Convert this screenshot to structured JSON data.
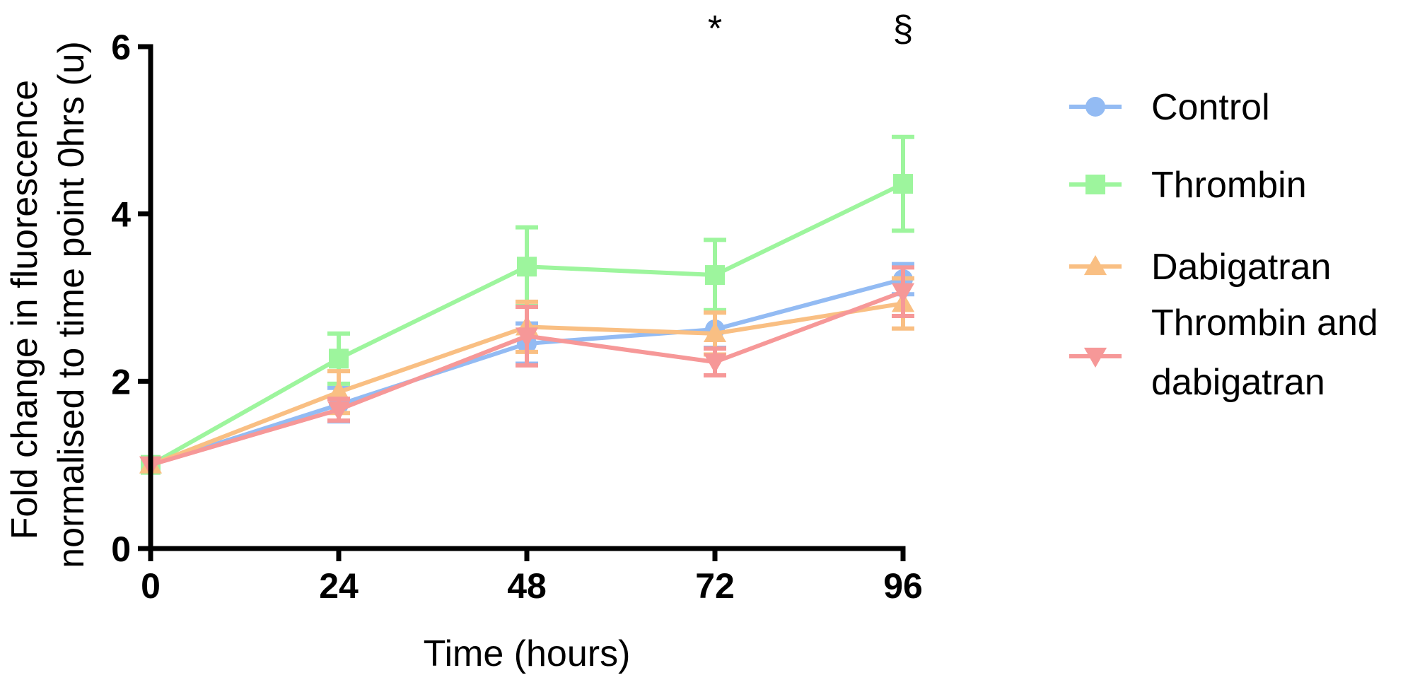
{
  "chart_data": {
    "type": "line",
    "xlabel": "Time (hours)",
    "ylabel_lines": [
      "Fold change in fluorescence",
      "normalised to time point 0hrs (u)"
    ],
    "x": [
      0,
      24,
      48,
      72,
      96
    ],
    "x_ticks": [
      "0",
      "24",
      "48",
      "72",
      "96"
    ],
    "y_ticks": [
      "0",
      "2",
      "4",
      "6"
    ],
    "xlim": [
      0,
      96
    ],
    "ylim": [
      0,
      6
    ],
    "grid": false,
    "legend_position": "right",
    "annotations": [
      {
        "x": 72,
        "text": "*"
      },
      {
        "x": 96,
        "text": "§"
      }
    ],
    "series": [
      {
        "name": "Control",
        "legend_lines": [
          "Control"
        ],
        "marker": "circle",
        "color": "#93bbf3",
        "values": [
          1.0,
          1.72,
          2.45,
          2.62,
          3.22
        ],
        "errors": [
          0.02,
          0.2,
          0.24,
          0.22,
          0.18
        ]
      },
      {
        "name": "Thrombin",
        "legend_lines": [
          "Thrombin"
        ],
        "marker": "square",
        "color": "#9df59d",
        "values": [
          1.0,
          2.27,
          3.37,
          3.27,
          4.36
        ],
        "errors": [
          0.02,
          0.3,
          0.47,
          0.42,
          0.56
        ]
      },
      {
        "name": "Dabigatran",
        "legend_lines": [
          "Dabigatran"
        ],
        "marker": "triangle-up",
        "color": "#f9bf83",
        "values": [
          1.0,
          1.87,
          2.65,
          2.57,
          2.93
        ],
        "errors": [
          0.02,
          0.25,
          0.3,
          0.25,
          0.3
        ]
      },
      {
        "name": "Thrombin and dabigatran",
        "legend_lines": [
          "Thrombin and",
          "dabigatran"
        ],
        "marker": "triangle-down",
        "color": "#f69898",
        "values": [
          1.0,
          1.66,
          2.54,
          2.23,
          3.07
        ],
        "errors": [
          0.02,
          0.13,
          0.35,
          0.16,
          0.29
        ]
      }
    ]
  }
}
